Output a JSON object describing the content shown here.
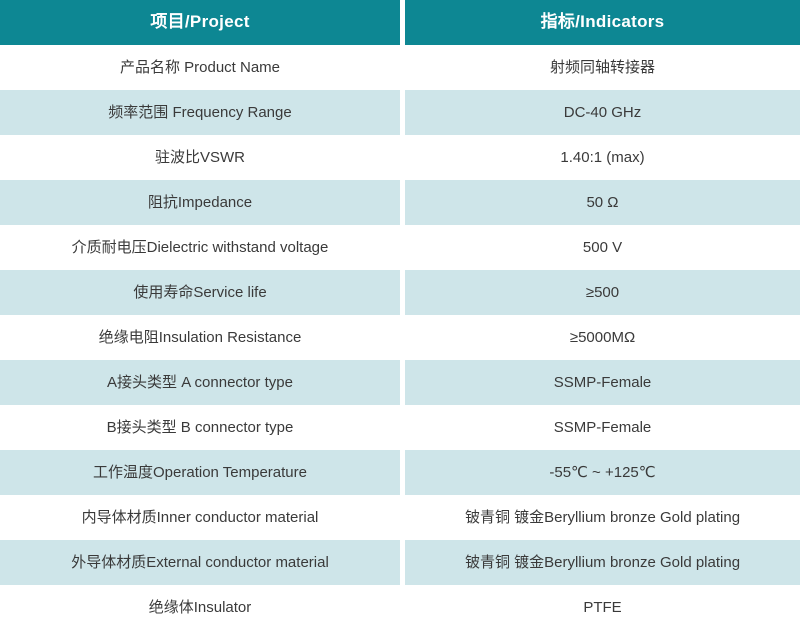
{
  "colors": {
    "header_bg": "#0d8793",
    "alt_row_bg": "#cee5e9",
    "row_bg": "#ffffff",
    "header_text": "#ffffff",
    "body_text": "#3a3a3a"
  },
  "table": {
    "header": {
      "project": "项目/Project",
      "indicators": "指标/Indicators"
    },
    "rows": [
      {
        "project": "产品名称 Product Name",
        "indicator": "射频同轴转接器"
      },
      {
        "project": "频率范围 Frequency Range",
        "indicator": "DC-40 GHz"
      },
      {
        "project": "驻波比VSWR",
        "indicator": "1.40:1 (max)"
      },
      {
        "project": "阻抗Impedance",
        "indicator": "50 Ω"
      },
      {
        "project": "介质耐电压Dielectric withstand voltage",
        "indicator": "500 V"
      },
      {
        "project": "使用寿命Service life",
        "indicator": "≥500"
      },
      {
        "project": "绝缘电阻Insulation Resistance",
        "indicator": "≥5000MΩ"
      },
      {
        "project": "A接头类型 A connector type",
        "indicator": "SSMP-Female"
      },
      {
        "project": "B接头类型 B connector type",
        "indicator": "SSMP-Female"
      },
      {
        "project": "工作温度Operation Temperature",
        "indicator": "-55℃ ~ +125℃"
      },
      {
        "project": "内导体材质Inner conductor material",
        "indicator": "铍青铜 镀金Beryllium bronze Gold plating"
      },
      {
        "project": "外导体材质External conductor material",
        "indicator": "铍青铜 镀金Beryllium bronze Gold plating"
      },
      {
        "project": "绝缘体Insulator",
        "indicator": "PTFE"
      }
    ]
  }
}
